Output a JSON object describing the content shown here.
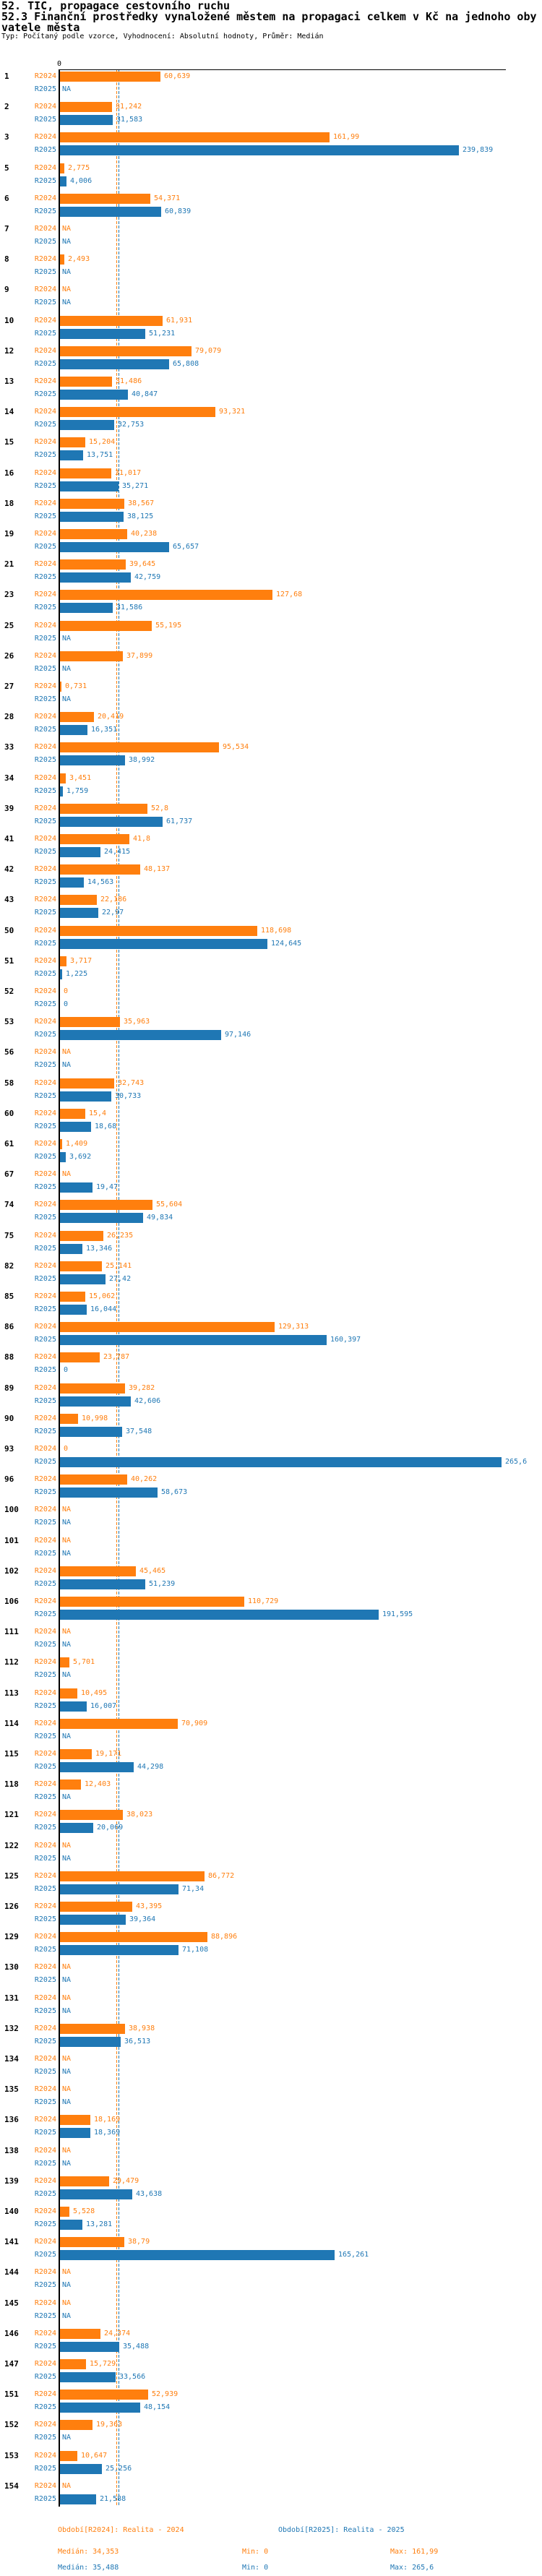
{
  "header": {
    "title_line1": "52. TIC, propagace cestovního ruchu",
    "title_line2": "52.3 Finanční prostředky vynaložené městem na propagaci celkem v Kč na jednoho obyvatele města",
    "subtitle": "Typ: Počítaný podle vzorce, Vyhodnocení: Absolutní hodnoty, Průměr: Medián"
  },
  "chart_data": {
    "type": "bar",
    "orientation": "horizontal",
    "title": "52.3 Finanční prostředky vynaložené městem na propagaci celkem v Kč na jednoho obyvatele města",
    "xlabel": "Kč na jednoho obyvatele",
    "xlim": [
      0,
      268
    ],
    "zero_label": "0",
    "grid": false,
    "legend_position": "bottom",
    "series_names": [
      "R2024",
      "R2025"
    ],
    "colors": {
      "R2024": "#ff7f0e",
      "R2025": "#1f77b4"
    },
    "medians": {
      "R2024": 34.353,
      "R2025": 35.488
    },
    "na_text": "NA",
    "rows": [
      {
        "id": "1",
        "R2024": "60,639",
        "R2025": "NA"
      },
      {
        "id": "2",
        "R2024": "31,242",
        "R2025": "31,583"
      },
      {
        "id": "3",
        "R2024": "161,99",
        "R2025": "239,839"
      },
      {
        "id": "5",
        "R2024": "2,775",
        "R2025": "4,006"
      },
      {
        "id": "6",
        "R2024": "54,371",
        "R2025": "60,839"
      },
      {
        "id": "7",
        "R2024": "NA",
        "R2025": "NA"
      },
      {
        "id": "8",
        "R2024": "2,493",
        "R2025": "NA"
      },
      {
        "id": "9",
        "R2024": "NA",
        "R2025": "NA"
      },
      {
        "id": "10",
        "R2024": "61,931",
        "R2025": "51,231"
      },
      {
        "id": "12",
        "R2024": "79,079",
        "R2025": "65,808"
      },
      {
        "id": "13",
        "R2024": "31,486",
        "R2025": "40,847"
      },
      {
        "id": "14",
        "R2024": "93,321",
        "R2025": "32,753"
      },
      {
        "id": "15",
        "R2024": "15,204",
        "R2025": "13,751"
      },
      {
        "id": "16",
        "R2024": "31,017",
        "R2025": "35,271"
      },
      {
        "id": "18",
        "R2024": "38,567",
        "R2025": "38,125"
      },
      {
        "id": "19",
        "R2024": "40,238",
        "R2025": "65,657"
      },
      {
        "id": "21",
        "R2024": "39,645",
        "R2025": "42,759"
      },
      {
        "id": "23",
        "R2024": "127,68",
        "R2025": "31,586"
      },
      {
        "id": "25",
        "R2024": "55,195",
        "R2025": "NA"
      },
      {
        "id": "26",
        "R2024": "37,899",
        "R2025": "NA"
      },
      {
        "id": "27",
        "R2024": "0,731",
        "R2025": "NA"
      },
      {
        "id": "28",
        "R2024": "20,419",
        "R2025": "16,351"
      },
      {
        "id": "33",
        "R2024": "95,534",
        "R2025": "38,992"
      },
      {
        "id": "34",
        "R2024": "3,451",
        "R2025": "1,759"
      },
      {
        "id": "39",
        "R2024": "52,8",
        "R2025": "61,737"
      },
      {
        "id": "41",
        "R2024": "41,8",
        "R2025": "24,415"
      },
      {
        "id": "42",
        "R2024": "48,137",
        "R2025": "14,563"
      },
      {
        "id": "43",
        "R2024": "22,186",
        "R2025": "22,97"
      },
      {
        "id": "50",
        "R2024": "118,698",
        "R2025": "124,645"
      },
      {
        "id": "51",
        "R2024": "3,717",
        "R2025": "1,225"
      },
      {
        "id": "52",
        "R2024": "0",
        "R2025": "0"
      },
      {
        "id": "53",
        "R2024": "35,963",
        "R2025": "97,146"
      },
      {
        "id": "56",
        "R2024": "NA",
        "R2025": "NA"
      },
      {
        "id": "58",
        "R2024": "32,743",
        "R2025": "30,733"
      },
      {
        "id": "60",
        "R2024": "15,4",
        "R2025": "18,68"
      },
      {
        "id": "61",
        "R2024": "1,409",
        "R2025": "3,692"
      },
      {
        "id": "67",
        "R2024": "NA",
        "R2025": "19,47"
      },
      {
        "id": "74",
        "R2024": "55,604",
        "R2025": "49,834"
      },
      {
        "id": "75",
        "R2024": "26,235",
        "R2025": "13,346"
      },
      {
        "id": "82",
        "R2024": "25,141",
        "R2025": "27,42"
      },
      {
        "id": "85",
        "R2024": "15,062",
        "R2025": "16,044"
      },
      {
        "id": "86",
        "R2024": "129,313",
        "R2025": "160,397"
      },
      {
        "id": "88",
        "R2024": "23,787",
        "R2025": "0"
      },
      {
        "id": "89",
        "R2024": "39,282",
        "R2025": "42,606"
      },
      {
        "id": "90",
        "R2024": "10,998",
        "R2025": "37,548"
      },
      {
        "id": "93",
        "R2024": "0",
        "R2025": "265,6"
      },
      {
        "id": "96",
        "R2024": "40,262",
        "R2025": "58,673"
      },
      {
        "id": "100",
        "R2024": "NA",
        "R2025": "NA"
      },
      {
        "id": "101",
        "R2024": "NA",
        "R2025": "NA"
      },
      {
        "id": "102",
        "R2024": "45,465",
        "R2025": "51,239"
      },
      {
        "id": "106",
        "R2024": "110,729",
        "R2025": "191,595"
      },
      {
        "id": "111",
        "R2024": "NA",
        "R2025": "NA"
      },
      {
        "id": "112",
        "R2024": "5,701",
        "R2025": "NA"
      },
      {
        "id": "113",
        "R2024": "10,495",
        "R2025": "16,007"
      },
      {
        "id": "114",
        "R2024": "70,909",
        "R2025": "NA"
      },
      {
        "id": "115",
        "R2024": "19,171",
        "R2025": "44,298"
      },
      {
        "id": "118",
        "R2024": "12,403",
        "R2025": "NA"
      },
      {
        "id": "121",
        "R2024": "38,023",
        "R2025": "20,069"
      },
      {
        "id": "122",
        "R2024": "NA",
        "R2025": "NA"
      },
      {
        "id": "125",
        "R2024": "86,772",
        "R2025": "71,34"
      },
      {
        "id": "126",
        "R2024": "43,395",
        "R2025": "39,364"
      },
      {
        "id": "129",
        "R2024": "88,896",
        "R2025": "71,108"
      },
      {
        "id": "130",
        "R2024": "NA",
        "R2025": "NA"
      },
      {
        "id": "131",
        "R2024": "NA",
        "R2025": "NA"
      },
      {
        "id": "132",
        "R2024": "38,938",
        "R2025": "36,513"
      },
      {
        "id": "134",
        "R2024": "NA",
        "R2025": "NA"
      },
      {
        "id": "135",
        "R2024": "NA",
        "R2025": "NA"
      },
      {
        "id": "136",
        "R2024": "18,169",
        "R2025": "18,369"
      },
      {
        "id": "138",
        "R2024": "NA",
        "R2025": "NA"
      },
      {
        "id": "139",
        "R2024": "29,479",
        "R2025": "43,638"
      },
      {
        "id": "140",
        "R2024": "5,528",
        "R2025": "13,281"
      },
      {
        "id": "141",
        "R2024": "38,79",
        "R2025": "165,261"
      },
      {
        "id": "144",
        "R2024": "NA",
        "R2025": "NA"
      },
      {
        "id": "145",
        "R2024": "NA",
        "R2025": "NA"
      },
      {
        "id": "146",
        "R2024": "24,374",
        "R2025": "35,488"
      },
      {
        "id": "147",
        "R2024": "15,729",
        "R2025": "33,566"
      },
      {
        "id": "151",
        "R2024": "52,939",
        "R2025": "48,154"
      },
      {
        "id": "152",
        "R2024": "19,363",
        "R2025": "NA"
      },
      {
        "id": "153",
        "R2024": "10,647",
        "R2025": "25,256"
      },
      {
        "id": "154",
        "R2024": "NA",
        "R2025": "21,588"
      }
    ]
  },
  "footer": {
    "legend_r2024": "Období[R2024]: Realita - 2024",
    "legend_r2025": "Období[R2025]: Realita - 2025",
    "r2024_stats": {
      "median": "Medián: 34,353",
      "min": "Min: 0",
      "max": "Max: 161,99"
    },
    "r2025_stats": {
      "median": "Medián: 35,488",
      "min": "Min: 0",
      "max": "Max: 265,6"
    }
  }
}
